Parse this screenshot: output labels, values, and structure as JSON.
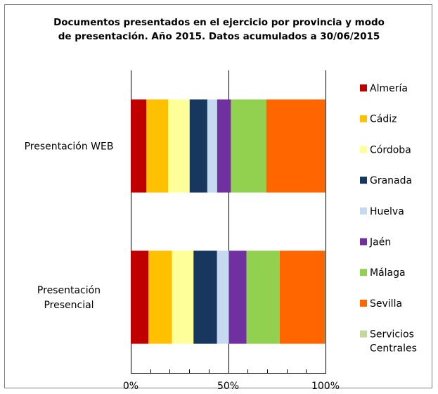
{
  "chart_data": {
    "type": "bar",
    "orientation": "horizontal",
    "stacked": "percent",
    "title": [
      "Documentos presentados en el ejercicio por provincia y modo",
      "de presentación. Año 2015. Datos acumulados a 30/06/2015"
    ],
    "categories": [
      [
        "Presentación WEB"
      ],
      [
        "Presentación",
        "Presencial"
      ]
    ],
    "xticks": [
      "0%",
      "50%",
      "100%"
    ],
    "xlim": [
      0,
      100
    ],
    "legend_position": "right",
    "grid": "vertical major at 0%, 50%, 100%",
    "series": [
      {
        "name": [
          "Almería"
        ],
        "color": "#c00000",
        "values": [
          8,
          9
        ]
      },
      {
        "name": [
          "Cádiz"
        ],
        "color": "#ffc000",
        "values": [
          11,
          12
        ]
      },
      {
        "name": [
          "Córdoba"
        ],
        "color": "#ffff99",
        "values": [
          11,
          11
        ]
      },
      {
        "name": [
          "Granada"
        ],
        "color": "#17375e",
        "values": [
          9,
          12
        ]
      },
      {
        "name": [
          "Huelva"
        ],
        "color": "#c5d9f1",
        "values": [
          5,
          6
        ]
      },
      {
        "name": [
          "Jaén"
        ],
        "color": "#7030a0",
        "values": [
          7,
          9
        ]
      },
      {
        "name": [
          "Málaga"
        ],
        "color": "#92d050",
        "values": [
          18,
          17
        ]
      },
      {
        "name": [
          "Sevilla"
        ],
        "color": "#ff6600",
        "values": [
          30,
          23
        ]
      },
      {
        "name": [
          "Servicios",
          "Centrales"
        ],
        "color": "#c3d69b",
        "values": [
          0.2,
          0.3
        ]
      }
    ]
  }
}
